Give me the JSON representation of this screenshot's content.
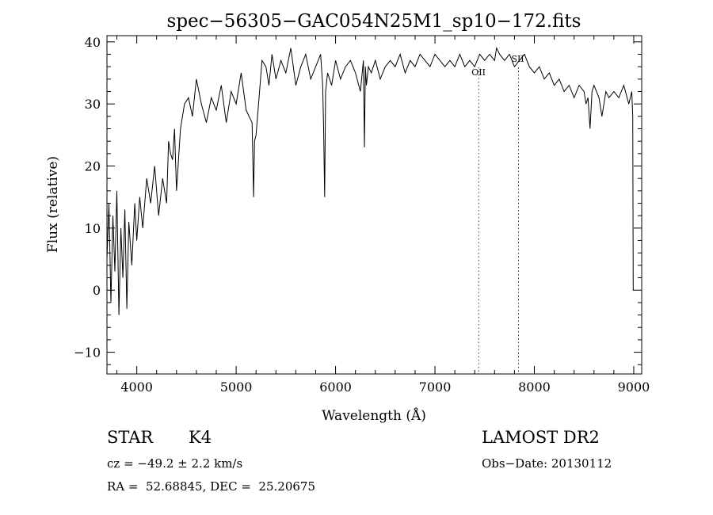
{
  "chart_data": {
    "type": "line",
    "title": "spec−56305−GAC054N25M1_sp10−172.fits",
    "xlabel": "Wavelength (Å)",
    "ylabel": "Flux (relative)",
    "xlim": [
      3700,
      9080
    ],
    "ylim": [
      -13.5,
      41
    ],
    "x_ticks": [
      4000,
      5000,
      6000,
      7000,
      8000,
      9000
    ],
    "y_ticks": [
      -10,
      0,
      10,
      20,
      30,
      40
    ],
    "y_tick_labels": [
      "−10",
      "0",
      "10",
      "20",
      "30",
      "40"
    ],
    "grid": false,
    "series": [
      {
        "color": "#000000",
        "x": [
          3700,
          3720,
          3740,
          3760,
          3780,
          3800,
          3820,
          3840,
          3860,
          3880,
          3900,
          3920,
          3950,
          3980,
          4000,
          4030,
          4060,
          4100,
          4140,
          4180,
          4220,
          4260,
          4300,
          4320,
          4340,
          4360,
          4380,
          4400,
          4440,
          4480,
          4520,
          4560,
          4600,
          4650,
          4700,
          4750,
          4800,
          4850,
          4900,
          4950,
          5000,
          5050,
          5100,
          5130,
          5160,
          5175,
          5185,
          5200,
          5230,
          5260,
          5300,
          5330,
          5360,
          5400,
          5450,
          5500,
          5550,
          5600,
          5650,
          5700,
          5750,
          5800,
          5850,
          5870,
          5880,
          5890,
          5900,
          5920,
          5960,
          6000,
          6050,
          6100,
          6150,
          6200,
          6250,
          6280,
          6290,
          6300,
          6310,
          6330,
          6360,
          6400,
          6450,
          6500,
          6550,
          6600,
          6650,
          6700,
          6750,
          6800,
          6850,
          6900,
          6950,
          7000,
          7050,
          7100,
          7150,
          7200,
          7250,
          7300,
          7350,
          7400,
          7450,
          7500,
          7550,
          7600,
          7620,
          7650,
          7700,
          7750,
          7800,
          7850,
          7900,
          7950,
          8000,
          8050,
          8100,
          8150,
          8200,
          8250,
          8300,
          8350,
          8400,
          8450,
          8500,
          8520,
          8540,
          8560,
          8580,
          8600,
          8650,
          8680,
          8700,
          8720,
          8750,
          8800,
          8850,
          8900,
          8950,
          8980,
          8990,
          8995,
          9000
        ],
        "y": [
          5,
          14,
          -2,
          12,
          3,
          16,
          -4,
          10,
          2,
          13,
          -3,
          11,
          4,
          14,
          8,
          15,
          10,
          18,
          14,
          20,
          12,
          18,
          14,
          24,
          22,
          21,
          26,
          16,
          26,
          30,
          31,
          28,
          34,
          30,
          27,
          31,
          29,
          33,
          27,
          32,
          30,
          35,
          29,
          28,
          27,
          15,
          24,
          25,
          31,
          37,
          36,
          33,
          38,
          34,
          37,
          35,
          39,
          33,
          36,
          38,
          34,
          36,
          38,
          33,
          26,
          15,
          32,
          35,
          33,
          37,
          34,
          36,
          37,
          35,
          32,
          37,
          23,
          36,
          33,
          36,
          35,
          37,
          34,
          36,
          37,
          36,
          38,
          35,
          37,
          36,
          38,
          37,
          36,
          38,
          37,
          36,
          37,
          36,
          38,
          36,
          37,
          36,
          38,
          37,
          38,
          37,
          39,
          38,
          37,
          38,
          36,
          37,
          38,
          36,
          35,
          36,
          34,
          35,
          33,
          34,
          32,
          33,
          31,
          33,
          32,
          30,
          31,
          26,
          32,
          33,
          31,
          28,
          30,
          32,
          31,
          32,
          31,
          33,
          30,
          32,
          28,
          0,
          0
        ]
      }
    ],
    "annotations": [
      {
        "text": "OII",
        "x": 7440
      },
      {
        "text": "SII",
        "x": 7840
      }
    ],
    "vlines": [
      7440,
      7840
    ]
  },
  "info": {
    "star_label": "STAR",
    "class_label": "K4",
    "survey": "LAMOST DR2",
    "cz": "cz = −49.2 ± 2.2 km/s",
    "obs_date": "Obs−Date: 20130112",
    "coords": "RA =  52.68845, DEC =  25.20675"
  }
}
